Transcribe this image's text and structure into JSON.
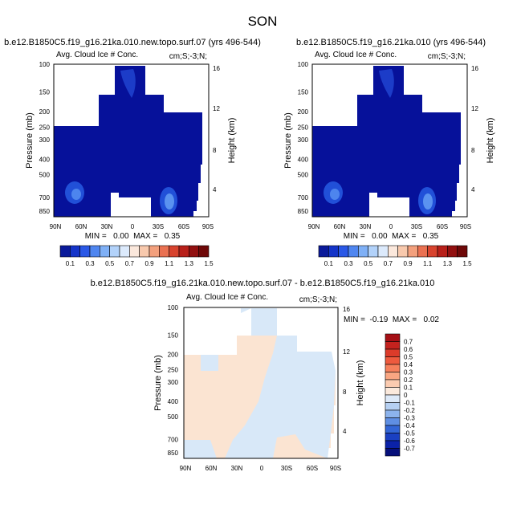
{
  "figure_title": "SON",
  "chart_data": [
    {
      "type": "heatmap",
      "title": "b.e12.B1850C5.f19_g16.21ka.010.new.topo.surf.07 (yrs 496-544)",
      "subtitle_left": "Avg. Cloud Ice # Conc.",
      "subtitle_right": "cm;S;-3;N;",
      "ylabel": "Pressure (mb)",
      "ylabel_right": "Height (km)",
      "x_ticks": [
        "90N",
        "60N",
        "30N",
        "0",
        "30S",
        "60S",
        "90S"
      ],
      "y_ticks": [
        "100",
        "150",
        "200",
        "250",
        "300",
        "400",
        "500",
        "700",
        "850"
      ],
      "y_right_ticks": [
        "16",
        "12",
        "8",
        "4"
      ],
      "stats": "MIN =   0.00  MAX =   0.35",
      "colorbar_labels": [
        "0.1",
        "0.3",
        "0.5",
        "0.7",
        "0.9",
        "1.1",
        "1.3",
        "1.5"
      ],
      "colorbar_colors": [
        "#0a1a9a",
        "#1434c8",
        "#2a58e6",
        "#4f86f0",
        "#7fb0f6",
        "#b2d2fa",
        "#dceafc",
        "#fbe8dc",
        "#f8c9ad",
        "#f3a07d",
        "#ea7152",
        "#d8432e",
        "#b8201a",
        "#921010",
        "#6e0808"
      ],
      "field_color": "#06119a"
    },
    {
      "type": "heatmap",
      "title": "b.e12.B1850C5.f19_g16.21ka.010 (yrs 496-544)",
      "subtitle_left": "Avg. Cloud Ice # Conc.",
      "subtitle_right": "cm;S;-3;N;",
      "ylabel": "Pressure (mb)",
      "ylabel_right": "Height (km)",
      "x_ticks": [
        "90N",
        "60N",
        "30N",
        "0",
        "30S",
        "60S",
        "90S"
      ],
      "y_ticks": [
        "100",
        "150",
        "200",
        "250",
        "300",
        "400",
        "500",
        "700",
        "850"
      ],
      "y_right_ticks": [
        "16",
        "12",
        "8",
        "4"
      ],
      "stats": "MIN =   0.00  MAX =   0.35",
      "colorbar_labels": [
        "0.1",
        "0.3",
        "0.5",
        "0.7",
        "0.9",
        "1.1",
        "1.3",
        "1.5"
      ],
      "colorbar_colors": [
        "#0a1a9a",
        "#1434c8",
        "#2a58e6",
        "#4f86f0",
        "#7fb0f6",
        "#b2d2fa",
        "#dceafc",
        "#fbe8dc",
        "#f8c9ad",
        "#f3a07d",
        "#ea7152",
        "#d8432e",
        "#b8201a",
        "#921010",
        "#6e0808"
      ],
      "field_color": "#06119a"
    },
    {
      "type": "heatmap",
      "title": "b.e12.B1850C5.f19_g16.21ka.010.new.topo.surf.07 - b.e12.B1850C5.f19_g16.21ka.010",
      "subtitle_left": "Avg. Cloud Ice # Conc.",
      "subtitle_right": "cm;S;-3;N;",
      "ylabel": "Pressure (mb)",
      "ylabel_right": "Height (km)",
      "x_ticks": [
        "90N",
        "60N",
        "30N",
        "0",
        "30S",
        "60S",
        "90S"
      ],
      "y_ticks": [
        "100",
        "150",
        "200",
        "250",
        "300",
        "400",
        "500",
        "700",
        "850"
      ],
      "y_right_ticks": [
        "16",
        "12",
        "8",
        "4"
      ],
      "stats": "MIN =  -0.19  MAX =   0.02",
      "colorbar_labels": [
        "0.7",
        "0.6",
        "0.5",
        "0.4",
        "0.3",
        "0.2",
        "0.1",
        "0",
        "-0.1",
        "-0.2",
        "-0.3",
        "-0.4",
        "-0.5",
        "-0.6",
        "-0.7"
      ],
      "colorbar_colors": [
        "#a50f15",
        "#c4221e",
        "#dc3b2a",
        "#ee5a3e",
        "#f6805c",
        "#f9a682",
        "#fbcbb0",
        "#fbe9dc",
        "#dde9f8",
        "#b6d0f2",
        "#8cb3ec",
        "#5f8fe3",
        "#3366d6",
        "#1a40c2",
        "#0b22a8",
        "#060f7a"
      ],
      "field_color": "#fbe4d2",
      "field_color_alt": "#d8e8f8"
    }
  ]
}
